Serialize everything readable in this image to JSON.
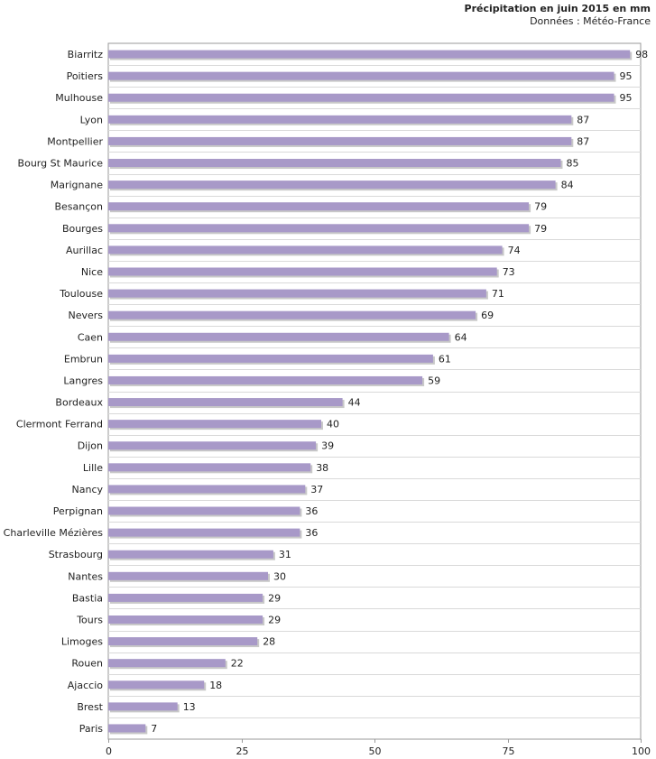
{
  "chart_data": {
    "type": "bar",
    "orientation": "horizontal",
    "title": "Précipitation en juin 2015 en mm",
    "subtitle": "Données : Météo-France",
    "categories": [
      "Biarritz",
      "Poitiers",
      "Mulhouse",
      "Lyon",
      "Montpellier",
      "Bourg St Maurice",
      "Marignane",
      "Besançon",
      "Bourges",
      "Aurillac",
      "Nice",
      "Toulouse",
      "Nevers",
      "Caen",
      "Embrun",
      "Langres",
      "Bordeaux",
      "Clermont Ferrand",
      "Dijon",
      "Lille",
      "Nancy",
      "Perpignan",
      "Charleville Mézières",
      "Strasbourg",
      "Nantes",
      "Bastia",
      "Tours",
      "Limoges",
      "Rouen",
      "Ajaccio",
      "Brest",
      "Paris"
    ],
    "values": [
      98,
      95,
      95,
      87,
      87,
      85,
      84,
      79,
      79,
      74,
      73,
      71,
      69,
      64,
      61,
      59,
      44,
      40,
      39,
      38,
      37,
      36,
      36,
      31,
      30,
      29,
      29,
      28,
      22,
      18,
      13,
      7
    ],
    "xlim": [
      0,
      100
    ],
    "xticks": [
      0,
      25,
      50,
      75,
      100
    ],
    "grid": true,
    "bar_color": "#a899c8",
    "shadow_color": "#c8c8c8",
    "grid_color": "#d9d9d9",
    "axis_color": "#999999"
  }
}
